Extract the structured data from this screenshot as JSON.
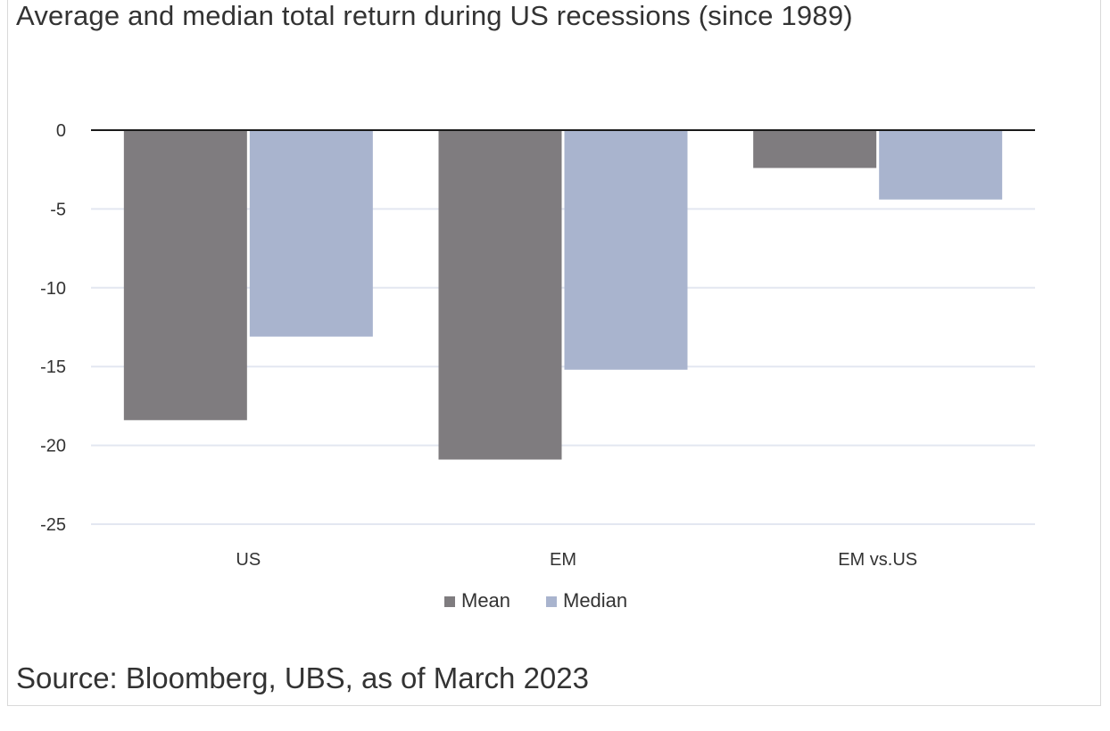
{
  "title": "Average and median total return during US recessions (since 1989)",
  "source": "Source: Bloomberg, UBS, as of March 2023",
  "chart_data": {
    "type": "bar",
    "title": "Average and median total return during US recessions (since 1989)",
    "xlabel": "",
    "ylabel": "",
    "categories": [
      "US",
      "EM",
      "EM vs.US"
    ],
    "series": [
      {
        "name": "Mean",
        "values": [
          -18.4,
          -20.9,
          -2.4
        ],
        "color": "#7f7c7f"
      },
      {
        "name": "Median",
        "values": [
          -13.1,
          -15.2,
          -4.4
        ],
        "color": "#a9b4ce"
      }
    ],
    "ylim": [
      -25,
      0
    ],
    "yticks": [
      0,
      -5,
      -10,
      -15,
      -20,
      -25
    ],
    "ytick_labels": [
      "0",
      "-5",
      "-10",
      "-15",
      "-20",
      "-25"
    ],
    "grid": true,
    "legend_position": "bottom"
  }
}
